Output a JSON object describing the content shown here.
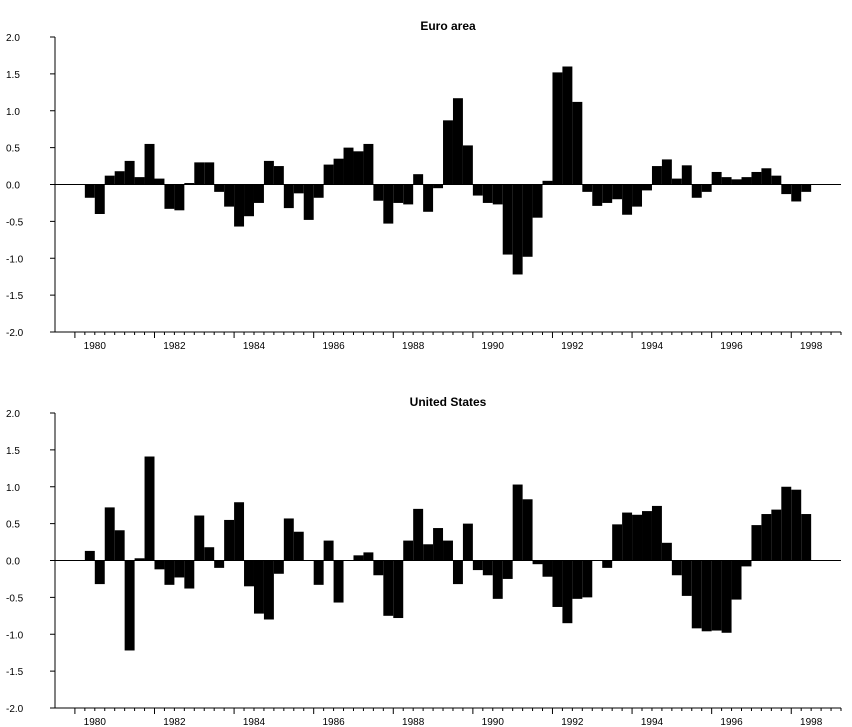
{
  "chart_data": [
    {
      "type": "bar",
      "title": "Euro area",
      "xlabel": "",
      "ylabel": "",
      "ylim": [
        -2.0,
        2.0
      ],
      "yticks": [
        "-2.0",
        "-1.5",
        "-1.0",
        "-0.5",
        "0.0",
        "0.5",
        "1.0",
        "1.5",
        "2.0"
      ],
      "xticks": [
        "1980",
        "1982",
        "1984",
        "1986",
        "1988",
        "1990",
        "1992",
        "1994",
        "1996",
        "1998"
      ],
      "x_range": [
        1979.5,
        1999.25
      ],
      "x_start": 1980.375,
      "x_step": 0.25,
      "grid": false,
      "bar_color": "#000000",
      "values": [
        -0.18,
        -0.4,
        0.12,
        0.18,
        0.32,
        0.1,
        0.55,
        0.08,
        -0.33,
        -0.35,
        0.02,
        0.3,
        0.3,
        -0.1,
        -0.3,
        -0.57,
        -0.43,
        -0.25,
        0.32,
        0.25,
        -0.32,
        -0.12,
        -0.48,
        -0.18,
        0.27,
        0.35,
        0.5,
        0.45,
        0.55,
        -0.22,
        -0.53,
        -0.25,
        -0.27,
        0.14,
        -0.37,
        -0.05,
        0.87,
        1.17,
        0.53,
        -0.15,
        -0.25,
        -0.27,
        -0.95,
        -1.22,
        -0.98,
        -0.45,
        0.05,
        1.52,
        1.6,
        1.12,
        -0.1,
        -0.29,
        -0.25,
        -0.2,
        -0.41,
        -0.3,
        -0.08,
        0.25,
        0.34,
        0.08,
        0.26,
        -0.18,
        -0.1,
        0.17,
        0.1,
        0.07,
        0.1,
        0.17,
        0.22,
        0.12,
        -0.13,
        -0.23,
        -0.1
      ]
    },
    {
      "type": "bar",
      "title": "United States",
      "xlabel": "",
      "ylabel": "",
      "ylim": [
        -2.0,
        2.0
      ],
      "yticks": [
        "-2.0",
        "-1.5",
        "-1.0",
        "-0.5",
        "0.0",
        "0.5",
        "1.0",
        "1.5",
        "2.0"
      ],
      "xticks": [
        "1980",
        "1982",
        "1984",
        "1986",
        "1988",
        "1990",
        "1992",
        "1994",
        "1996",
        "1998"
      ],
      "x_range": [
        1979.5,
        1999.25
      ],
      "x_start": 1980.375,
      "x_step": 0.25,
      "grid": false,
      "bar_color": "#000000",
      "values": [
        0.13,
        -0.32,
        0.72,
        0.41,
        -1.22,
        0.03,
        1.41,
        -0.12,
        -0.33,
        -0.23,
        -0.38,
        0.61,
        0.18,
        -0.1,
        0.55,
        0.79,
        -0.35,
        -0.72,
        -0.8,
        -0.18,
        0.57,
        0.39,
        0.0,
        -0.33,
        0.27,
        -0.57,
        0.0,
        0.07,
        0.11,
        -0.2,
        -0.75,
        -0.78,
        0.27,
        0.7,
        0.22,
        0.44,
        0.27,
        -0.32,
        0.5,
        -0.13,
        -0.2,
        -0.52,
        -0.25,
        1.03,
        0.83,
        -0.05,
        -0.22,
        -0.63,
        -0.85,
        -0.52,
        -0.5,
        0.0,
        -0.1,
        0.49,
        0.65,
        0.62,
        0.67,
        0.74,
        0.24,
        -0.2,
        -0.48,
        -0.92,
        -0.96,
        -0.95,
        -0.98,
        -0.53,
        -0.08,
        0.48,
        0.63,
        0.69,
        1.0,
        0.96,
        0.63
      ]
    }
  ]
}
